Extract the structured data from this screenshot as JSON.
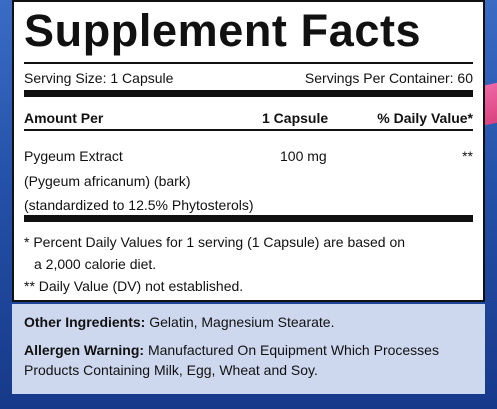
{
  "title": "Supplement Facts",
  "serving_size": "Serving Size: 1 Capsule",
  "servings_per_container": "Servings Per Container: 60",
  "table": {
    "header": [
      "Amount Per",
      "1 Capsule",
      "% Daily Value*"
    ],
    "rows": [
      {
        "name": [
          "Pygeum Extract",
          "(Pygeum africanum) (bark)",
          "(standardized to 12.5% Phytosterols)"
        ],
        "amount": "100 mg",
        "daily_value": "**"
      }
    ]
  },
  "footnotes": [
    "* Percent Daily Values for 1 serving (1 Capsule) are based on",
    "a 2,000 calorie diet.",
    "** Daily Value (DV) not established."
  ],
  "other_ingredients": {
    "label": "Other Ingredients:",
    "text": "Gelatin, Magnesium Stearate."
  },
  "allergen_warning": {
    "label": "Allergen Warning:",
    "text": "Manufactured On Equipment Which Processes Products Containing Milk, Egg, Wheat and Soy."
  }
}
